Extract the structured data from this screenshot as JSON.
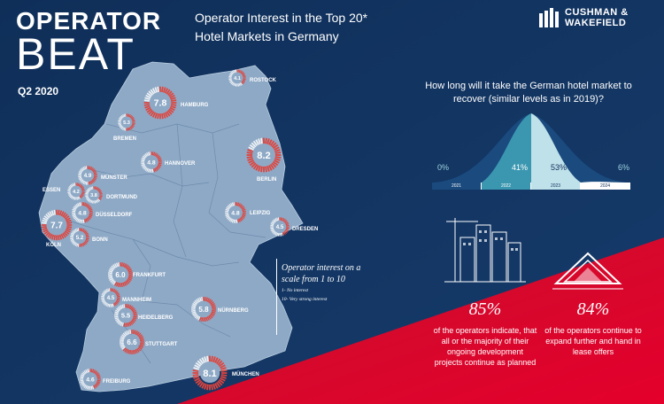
{
  "brand": {
    "line1": "OPERATOR",
    "line2": "BEAT",
    "period": "Q2 2020"
  },
  "headline": {
    "line1": "Operator Interest in the Top 20*",
    "line2": "Hotel Markets in Germany"
  },
  "logo": {
    "line1": "CUSHMAN &",
    "line2": "WAKEFIELD"
  },
  "recovery": {
    "question": "How long will it take the German hotel market to recover (similar levels as in 2019)?",
    "segments": [
      {
        "year": "2021",
        "pct": "0%"
      },
      {
        "year": "2022",
        "pct": "41%"
      },
      {
        "year": "2023",
        "pct": "53%"
      },
      {
        "year": "2024",
        "pct": "6%"
      }
    ]
  },
  "stats": [
    {
      "value": "85%",
      "text": "of the operators indicate, that all or the majority of their ongoing development projects continue as planned"
    },
    {
      "value": "84%",
      "text": "of the operators continue to expand further and hand in lease offers"
    }
  ],
  "legend": {
    "title": "Operator interest on a scale from 1 to 10",
    "line1": "1- No interest",
    "line2": "10- Very strong interest"
  },
  "cities": [
    {
      "name": "ROSTOCK",
      "value": "4.1"
    },
    {
      "name": "HAMBURG",
      "value": "7.8"
    },
    {
      "name": "BREMEN",
      "value": "5.3"
    },
    {
      "name": "HANNOVER",
      "value": "4.8"
    },
    {
      "name": "BERLIN",
      "value": "8.2"
    },
    {
      "name": "MÜNSTER",
      "value": "4.9"
    },
    {
      "name": "ESSEN",
      "value": "4.2"
    },
    {
      "name": "DORTMUND",
      "value": "3.8"
    },
    {
      "name": "DÜSSELDORF",
      "value": "4.8"
    },
    {
      "name": "KÖLN",
      "value": "7.7"
    },
    {
      "name": "BONN",
      "value": "5.2"
    },
    {
      "name": "LEIPZIG",
      "value": "4.8"
    },
    {
      "name": "DRESDEN",
      "value": "4.5"
    },
    {
      "name": "FRANKFURT",
      "value": "6.0"
    },
    {
      "name": "MANNHEIM",
      "value": "4.5"
    },
    {
      "name": "HEIDELBERG",
      "value": "5.5"
    },
    {
      "name": "NÜRNBERG",
      "value": "5.8"
    },
    {
      "name": "STUTTGART",
      "value": "6.6"
    },
    {
      "name": "FREIBURG",
      "value": "4.6"
    },
    {
      "name": "MÜNCHEN",
      "value": "8.1"
    }
  ],
  "colors": {
    "navy": "#0f2f59",
    "map": "#8ea9c6",
    "red": "#e4002b",
    "teal": "#4fb3c5"
  }
}
